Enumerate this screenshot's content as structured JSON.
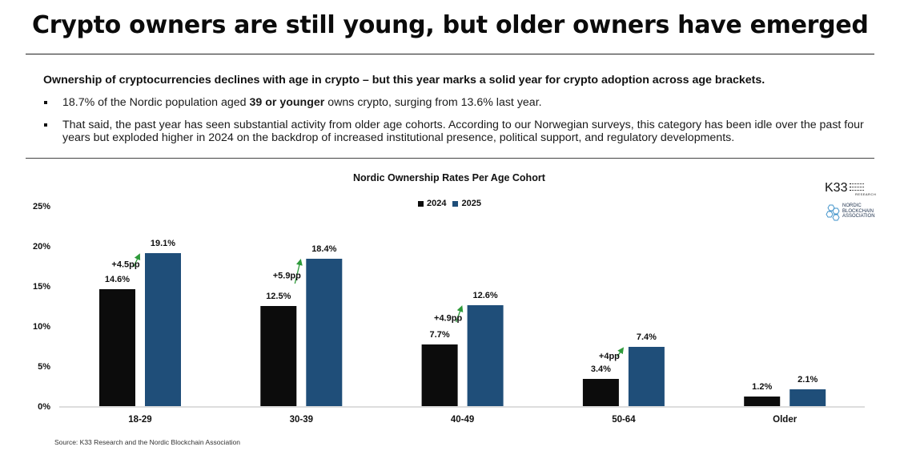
{
  "header": {
    "title": "Crypto owners are still young, but older owners have emerged",
    "intro": "Ownership of cryptocurrencies declines with age in crypto – but this year marks a solid year for crypto adoption across age brackets.",
    "bullet1_pre": "18.7% of the Nordic population aged ",
    "bullet1_bold": "39 or younger",
    "bullet1_post": " owns crypto, surging from 13.6% last year.",
    "bullet2": "That said, the past year has seen substantial activity from older age cohorts. According to our Norwegian surveys, this category has been idle over the past four years but exploded higher in 2024 on the backdrop of increased institutional presence, political support, and regulatory developments."
  },
  "logos": {
    "k33": "K33",
    "k33_sub": "RESEARCH",
    "nba_lines": [
      "NORDIC",
      "BLOCKCHAIN",
      "ASSOCIATION"
    ]
  },
  "source": "Source: K33 Research and the Nordic Blockchain Association",
  "colors": {
    "series_2024": "#0c0c0c",
    "series_2025": "#1f4e79",
    "arrow": "#2e9a3a"
  },
  "chart_data": {
    "type": "bar",
    "title": "Nordic Ownership Rates Per Age Cohort",
    "categories": [
      "18-29",
      "30-39",
      "40-49",
      "50-64",
      "Older"
    ],
    "series": [
      {
        "name": "2024",
        "values": [
          14.6,
          12.5,
          7.7,
          3.4,
          1.2
        ],
        "labels": [
          "14.6%",
          "12.5%",
          "7.7%",
          "3.4%",
          "1.2%"
        ]
      },
      {
        "name": "2025",
        "values": [
          19.1,
          18.4,
          12.6,
          7.4,
          2.1
        ],
        "labels": [
          "19.1%",
          "18.4%",
          "12.6%",
          "7.4%",
          "2.1%"
        ]
      }
    ],
    "annotations": [
      "+4.5pp",
      "+5.9pp",
      "+4.9pp",
      "+4pp",
      null
    ],
    "ylim": [
      0,
      25
    ],
    "yticks": [
      0,
      5,
      10,
      15,
      20,
      25
    ],
    "ytick_labels": [
      "0%",
      "5%",
      "10%",
      "15%",
      "20%",
      "25%"
    ],
    "xlabel": "",
    "ylabel": "",
    "grid": false,
    "legend_position": "top-center"
  }
}
